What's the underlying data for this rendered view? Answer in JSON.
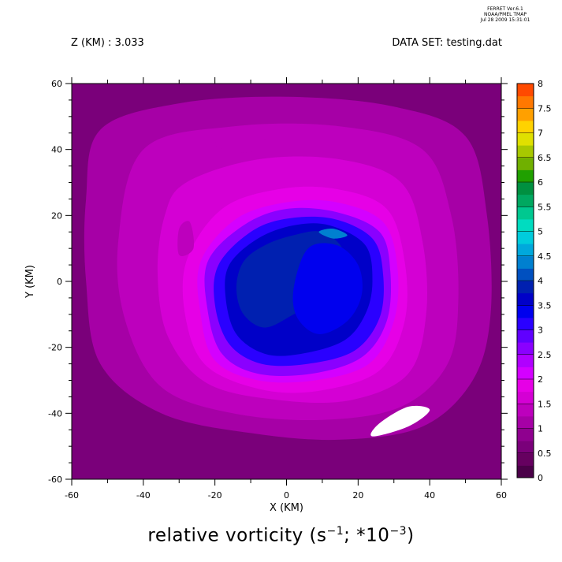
{
  "header": {
    "z_label": "Z (KM) : 3.033",
    "dataset_label": "DATA SET: testing.dat",
    "ferret": [
      "FERRET Ver.6.1",
      "NOAA/PMEL TMAP",
      "Jul 28 2009 15:31:01"
    ]
  },
  "caption": {
    "prefix": "relative vorticity (s",
    "sup1": "−1",
    "mid": "; *10",
    "sup2": "−3",
    "suffix": ")"
  },
  "chart_data": {
    "type": "heatmap",
    "xlabel": "X (KM)",
    "ylabel": "Y (KM)",
    "xlim": [
      -60,
      60
    ],
    "ylim": [
      -60,
      60
    ],
    "xticks": [
      -60,
      -40,
      -20,
      0,
      20,
      40,
      60
    ],
    "yticks": [
      -60,
      -40,
      -20,
      0,
      20,
      40,
      60
    ],
    "colorbar": {
      "min": 0,
      "max": 8,
      "step": 0.25,
      "tick_labels": [
        "0",
        "0.5",
        "1",
        "1.5",
        "2",
        "2.5",
        "3",
        "3.5",
        "4",
        "4.5",
        "5",
        "5.5",
        "6",
        "6.5",
        "7",
        "7.5",
        "8"
      ],
      "colors": [
        "#4a0048",
        "#660060",
        "#7a007a",
        "#8f008f",
        "#a600a6",
        "#bd00bd",
        "#d400d4",
        "#e600e6",
        "#d400ff",
        "#b000ff",
        "#8a00ff",
        "#6000ff",
        "#2a00ff",
        "#0000ee",
        "#0000c8",
        "#0020b0",
        "#0050c0",
        "#0080d0",
        "#00a8dc",
        "#00ccdc",
        "#00dcc0",
        "#00c890",
        "#00a860",
        "#009040",
        "#20a000",
        "#70b000",
        "#a8c800",
        "#e0e000",
        "#ffd200",
        "#ffa000",
        "#ff7800",
        "#ff4a00",
        "#ff0000",
        "#d80000",
        "#b00000",
        "#880000"
      ]
    },
    "field": {
      "background": 0.5,
      "contours": [
        {
          "level": 1.0,
          "points": [
            [
              -52,
              46
            ],
            [
              -30,
              54
            ],
            [
              0,
              56
            ],
            [
              30,
              53
            ],
            [
              50,
              44
            ],
            [
              56,
              20
            ],
            [
              57,
              -10
            ],
            [
              52,
              -30
            ],
            [
              38,
              -44
            ],
            [
              15,
              -48
            ],
            [
              -10,
              -46
            ],
            [
              -35,
              -40
            ],
            [
              -52,
              -25
            ],
            [
              -56,
              0
            ],
            [
              -56,
              25
            ]
          ]
        },
        {
          "level": 1.25,
          "points": [
            [
              -40,
              40
            ],
            [
              -15,
              47
            ],
            [
              15,
              47
            ],
            [
              38,
              40
            ],
            [
              46,
              20
            ],
            [
              48,
              -5
            ],
            [
              45,
              -25
            ],
            [
              32,
              -38
            ],
            [
              10,
              -42
            ],
            [
              -15,
              -40
            ],
            [
              -35,
              -32
            ],
            [
              -45,
              -12
            ],
            [
              -47,
              12
            ]
          ]
        },
        {
          "level": 1.5,
          "points": [
            [
              -28,
              30
            ],
            [
              -8,
              37
            ],
            [
              15,
              37
            ],
            [
              32,
              30
            ],
            [
              38,
              12
            ],
            [
              39,
              -10
            ],
            [
              34,
              -28
            ],
            [
              18,
              -36
            ],
            [
              -2,
              -36
            ],
            [
              -22,
              -31
            ],
            [
              -33,
              -17
            ],
            [
              -36,
              2
            ],
            [
              -34,
              20
            ]
          ]
        },
        {
          "level": 1.75,
          "points": [
            [
              -18,
              22
            ],
            [
              -2,
              28
            ],
            [
              14,
              28
            ],
            [
              28,
              22
            ],
            [
              33,
              6
            ],
            [
              33,
              -12
            ],
            [
              26,
              -27
            ],
            [
              10,
              -33
            ],
            [
              -6,
              -33
            ],
            [
              -22,
              -26
            ],
            [
              -28,
              -12
            ],
            [
              -28,
              6
            ]
          ]
        },
        {
          "level": 2.0,
          "points": [
            [
              -14,
              19
            ],
            [
              0,
              24
            ],
            [
              14,
              24
            ],
            [
              27,
              18
            ],
            [
              31,
              4
            ],
            [
              30,
              -12
            ],
            [
              23,
              -25
            ],
            [
              8,
              -30
            ],
            [
              -8,
              -30
            ],
            [
              -20,
              -24
            ],
            [
              -24,
              -10
            ],
            [
              -24,
              6
            ]
          ]
        },
        {
          "level": 2.5,
          "points": [
            [
              -12,
              17
            ],
            [
              0,
              22
            ],
            [
              14,
              21
            ],
            [
              26,
              15
            ],
            [
              29,
              3
            ],
            [
              28,
              -12
            ],
            [
              21,
              -23
            ],
            [
              7,
              -28
            ],
            [
              -8,
              -28
            ],
            [
              -18,
              -22
            ],
            [
              -22,
              -9
            ],
            [
              -22,
              6
            ]
          ]
        },
        {
          "level": 3.0,
          "points": [
            [
              -10,
              15
            ],
            [
              0,
              19
            ],
            [
              13,
              19
            ],
            [
              24,
              13
            ],
            [
              27,
              2
            ],
            [
              26,
              -11
            ],
            [
              19,
              -21
            ],
            [
              6,
              -25
            ],
            [
              -7,
              -25
            ],
            [
              -16,
              -19
            ],
            [
              -20,
              -7
            ],
            [
              -19,
              5
            ]
          ]
        },
        {
          "level": 3.5,
          "points": [
            [
              -8,
              13
            ],
            [
              2,
              17
            ],
            [
              12,
              17
            ],
            [
              22,
              11
            ],
            [
              24,
              0
            ],
            [
              22,
              -10
            ],
            [
              16,
              -18
            ],
            [
              4,
              -22
            ],
            [
              -6,
              -22
            ],
            [
              -14,
              -16
            ],
            [
              -17,
              -5
            ],
            [
              -16,
              5
            ]
          ]
        },
        {
          "level": 3.75,
          "points": [
            [
              -6,
              11
            ],
            [
              2,
              14
            ],
            [
              10,
              15
            ],
            [
              16,
              9
            ],
            [
              14,
              0
            ],
            [
              8,
              -6
            ],
            [
              2,
              -10
            ],
            [
              -6,
              -14
            ],
            [
              -12,
              -10
            ],
            [
              -14,
              -2
            ],
            [
              -12,
              6
            ]
          ]
        },
        {
          "level": 3.25,
          "points": [
            [
              6,
              10
            ],
            [
              14,
              11
            ],
            [
              20,
              5
            ],
            [
              21,
              -4
            ],
            [
              17,
              -12
            ],
            [
              9,
              -16
            ],
            [
              3,
              -11
            ],
            [
              2,
              -2
            ]
          ]
        },
        {
          "level": 4.25,
          "points": [
            [
              9,
              15
            ],
            [
              13,
              16
            ],
            [
              17,
              14
            ],
            [
              13,
              13
            ]
          ]
        },
        {
          "level": 1.25,
          "points": [
            [
              -30,
              16
            ],
            [
              -27,
              18
            ],
            [
              -26,
              10
            ],
            [
              -30,
              8
            ]
          ]
        },
        {
          "level": 1.25,
          "points": [
            [
              -20,
              42
            ],
            [
              -10,
              44
            ],
            [
              -4,
              41
            ],
            [
              -14,
              39
            ]
          ]
        }
      ],
      "holes": [
        {
          "points": [
            [
              24,
              -47
            ],
            [
              34,
              -44
            ],
            [
              40,
              -39
            ],
            [
              34,
              -38
            ],
            [
              26,
              -43
            ]
          ]
        }
      ]
    }
  }
}
